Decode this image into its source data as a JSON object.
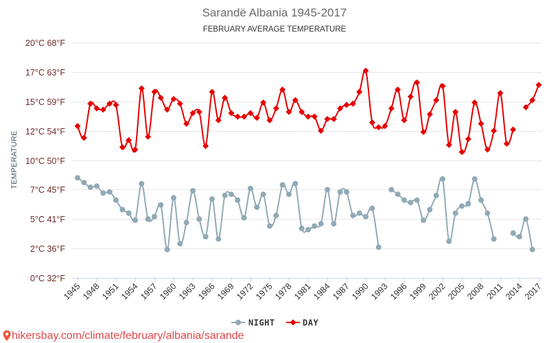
{
  "chart_data": {
    "type": "line",
    "title": "Sarandë Albania 1945-2017",
    "subtitle": "FEBRUARY AVERAGE TEMPERATURE",
    "xlabel": "",
    "ylabel": "TEMPERATURE",
    "ylim": [
      0,
      20
    ],
    "grid": true,
    "legend": "bottom-center",
    "y_ticks": [
      {
        "value": 0,
        "label": "0°C 32°F"
      },
      {
        "value": 2.5,
        "label": "2°C 36°F"
      },
      {
        "value": 5,
        "label": "5°C 41°F"
      },
      {
        "value": 7.5,
        "label": "7°C 45°F"
      },
      {
        "value": 10,
        "label": "10°C 50°F"
      },
      {
        "value": 12.5,
        "label": "12°C 54°F"
      },
      {
        "value": 15,
        "label": "15°C 59°F"
      },
      {
        "value": 17.5,
        "label": "17°C 63°F"
      },
      {
        "value": 20,
        "label": "20°C 68°F"
      }
    ],
    "x_ticks": [
      1945,
      1948,
      1951,
      1954,
      1957,
      1960,
      1963,
      1966,
      1969,
      1972,
      1975,
      1978,
      1981,
      1984,
      1987,
      1990,
      1993,
      1996,
      1999,
      2002,
      2005,
      2008,
      2011,
      2014,
      2017
    ],
    "x": [
      1945,
      1946,
      1947,
      1948,
      1949,
      1950,
      1951,
      1952,
      1953,
      1954,
      1955,
      1956,
      1957,
      1958,
      1959,
      1960,
      1961,
      1962,
      1963,
      1964,
      1965,
      1966,
      1967,
      1968,
      1969,
      1970,
      1971,
      1972,
      1973,
      1974,
      1975,
      1976,
      1977,
      1978,
      1979,
      1980,
      1981,
      1982,
      1983,
      1984,
      1985,
      1986,
      1987,
      1988,
      1989,
      1990,
      1991,
      1992,
      1993,
      1994,
      1995,
      1996,
      1997,
      1998,
      1999,
      2000,
      2001,
      2002,
      2003,
      2004,
      2005,
      2006,
      2007,
      2008,
      2009,
      2010,
      2011,
      2012,
      2013,
      2014,
      2015,
      2016,
      2017
    ],
    "series": [
      {
        "name": "NIGHT",
        "color": "#90aab5",
        "values": [
          8.5,
          8.1,
          7.7,
          7.8,
          7.2,
          7.3,
          6.6,
          5.8,
          5.5,
          4.9,
          8.0,
          5.0,
          5.2,
          6.2,
          2.4,
          6.8,
          2.9,
          4.7,
          7.4,
          5.0,
          3.5,
          6.7,
          3.3,
          7.0,
          7.1,
          6.6,
          5.1,
          7.6,
          6.0,
          7.1,
          4.4,
          5.3,
          7.9,
          7.1,
          8.0,
          4.2,
          4.1,
          4.4,
          4.6,
          7.5,
          4.6,
          7.3,
          7.3,
          5.3,
          5.5,
          5.2,
          5.9,
          2.6,
          null,
          7.5,
          7.1,
          6.6,
          6.4,
          6.6,
          4.9,
          5.8,
          7.0,
          8.4,
          3.1,
          5.5,
          6.1,
          6.3,
          8.4,
          6.6,
          5.5,
          3.3,
          null,
          null,
          3.8,
          3.5,
          5.0,
          2.4,
          null
        ]
      },
      {
        "name": "DAY",
        "color": "#e60000",
        "values": [
          12.9,
          11.9,
          14.8,
          14.4,
          14.3,
          14.8,
          14.7,
          11.1,
          11.7,
          10.9,
          16.1,
          12.0,
          15.8,
          15.3,
          14.3,
          15.2,
          14.8,
          13.1,
          14.0,
          14.1,
          11.2,
          15.8,
          13.4,
          15.3,
          14.0,
          13.7,
          13.7,
          14.0,
          13.6,
          14.9,
          13.4,
          14.4,
          16.0,
          14.1,
          15.1,
          14.1,
          13.7,
          13.7,
          12.5,
          13.5,
          13.5,
          14.4,
          14.7,
          14.8,
          15.8,
          17.6,
          13.2,
          12.8,
          12.9,
          14.4,
          16.0,
          13.4,
          15.4,
          16.6,
          12.4,
          13.9,
          15.1,
          16.3,
          11.3,
          14.1,
          10.7,
          11.8,
          14.9,
          13.1,
          10.9,
          12.5,
          15.7,
          11.4,
          12.6,
          null,
          14.5,
          15.1,
          16.4
        ]
      }
    ]
  },
  "watermark": {
    "text": "hikersbay.com/climate/february/albania/sarande",
    "color": "#e0474c",
    "icon": "location-pin-icon"
  }
}
